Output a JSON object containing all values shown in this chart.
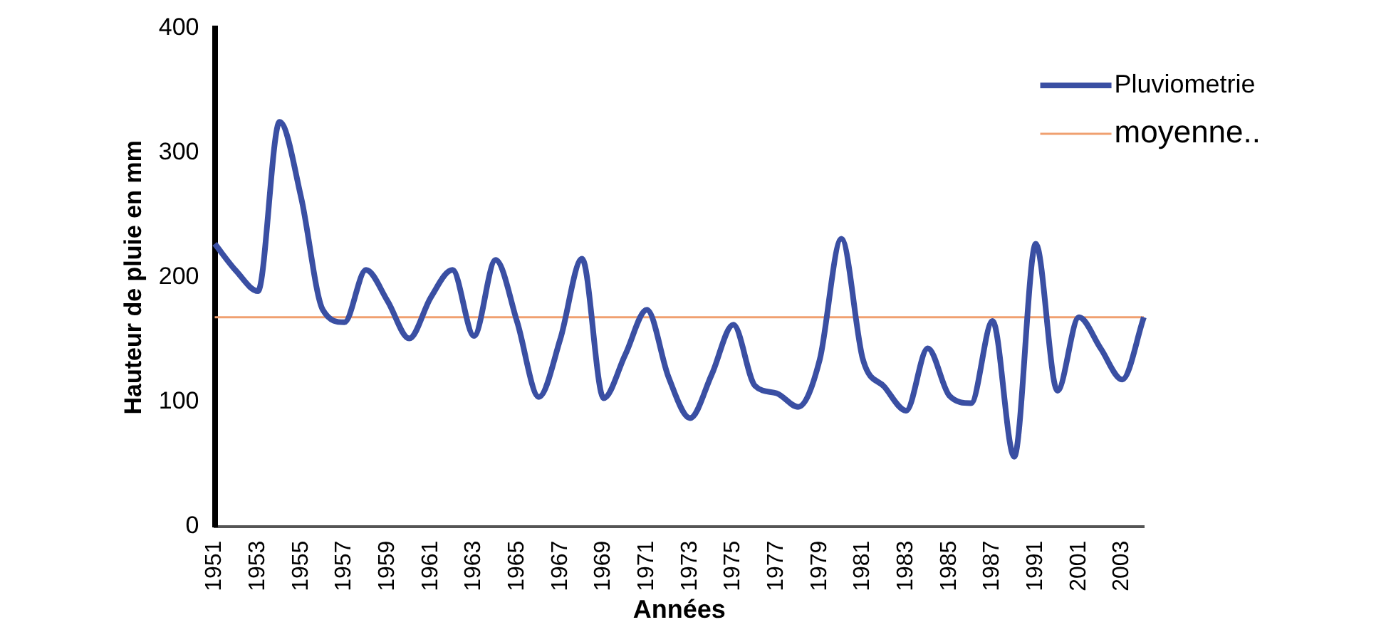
{
  "chart_data": {
    "type": "line",
    "xlabel": "Années",
    "ylabel": "Hauteur de pluie en mm",
    "categories": [
      "1951",
      null,
      "1953",
      null,
      "1955",
      null,
      "1957",
      null,
      "1959",
      null,
      "1961",
      null,
      "1963",
      null,
      "1965",
      null,
      "1967",
      null,
      "1969",
      null,
      "1971",
      null,
      "1973",
      null,
      "1975",
      null,
      "1977",
      null,
      "1979",
      null,
      "1981",
      null,
      "1983",
      null,
      "1985",
      null,
      "1987",
      null,
      "1991",
      null,
      "2001",
      null,
      "2003",
      null
    ],
    "series": [
      {
        "name": "Pluviometrie",
        "color": "#3a4fa3",
        "values": [
          227,
          205,
          189,
          325,
          264,
          174,
          164,
          206,
          181,
          151,
          184,
          206,
          153,
          214,
          164,
          104,
          151,
          215,
          103,
          138,
          174,
          120,
          87,
          122,
          162,
          113,
          107,
          96,
          134,
          231,
          134,
          112,
          93,
          143,
          105,
          99,
          165,
          56,
          227,
          109,
          168,
          143,
          118,
          168
        ]
      }
    ],
    "ref_lines": [
      {
        "axis": "y",
        "value": 168,
        "label": "moyenne..",
        "color": "#f0a070"
      }
    ],
    "ylim": [
      0,
      400
    ],
    "yticks": [
      0,
      100,
      200,
      300,
      400
    ],
    "grid": false,
    "legend": "top right",
    "marker": "none",
    "line_style": "solid"
  }
}
